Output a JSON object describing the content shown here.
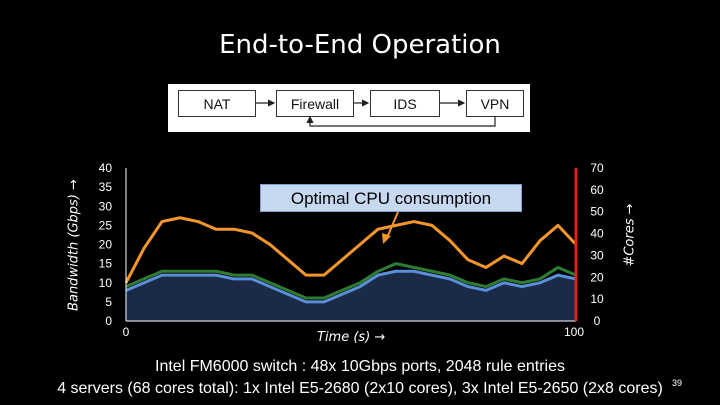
{
  "slide": {
    "title": "End-to-End Operation",
    "pipeline": [
      "NAT",
      "Firewall",
      "IDS",
      "VPN"
    ],
    "footnote_line1": "Intel FM6000 switch : 48x 10Gbps ports, 2048 rule entries",
    "footnote_line2": "4 servers  (68 cores total): 1x Intel E5-2680 (2x10 cores), 3x Intel E5-2650 (2x8 cores)",
    "page_number": "39"
  },
  "colors": {
    "background": "#000000",
    "orange": "#f5962a",
    "green": "#2e7d32",
    "blue": "#5b8fd9",
    "cores_axis": "#e02020",
    "callout": "#c6d9f1"
  },
  "chart_data": {
    "type": "line",
    "title": "",
    "callout": "Optimal CPU consumption",
    "xlabel": "Time (s) →",
    "ylabel_left": "Bandwidth (Gbps) →",
    "ylabel_right": "#Cores →",
    "x_ticks": [
      "0",
      "100"
    ],
    "xlim": [
      0,
      100
    ],
    "ylim_left": [
      0,
      40
    ],
    "ylim_right": [
      0,
      70
    ],
    "left_ticks": [
      "40",
      "35",
      "30",
      "25",
      "20",
      "15",
      "10",
      "5",
      "0"
    ],
    "right_ticks": [
      "70",
      "60",
      "50",
      "40",
      "30",
      "20",
      "10",
      "0"
    ],
    "x": [
      0,
      4,
      8,
      12,
      16,
      20,
      24,
      28,
      32,
      36,
      40,
      44,
      48,
      52,
      56,
      60,
      64,
      68,
      72,
      76,
      80,
      84,
      88,
      92,
      96,
      100
    ],
    "series": [
      {
        "axis": "left",
        "color": "orange",
        "values": [
          10,
          19,
          26,
          27,
          26,
          24,
          24,
          23,
          20,
          16,
          12,
          12,
          16,
          20,
          24,
          25,
          26,
          25,
          21,
          16,
          14,
          17,
          15,
          21,
          25,
          20
        ]
      },
      {
        "axis": "left",
        "color": "green",
        "values": [
          9,
          11,
          13,
          13,
          13,
          13,
          12,
          12,
          10,
          8,
          6,
          6,
          8,
          10,
          13,
          15,
          14,
          13,
          12,
          10,
          9,
          11,
          10,
          11,
          14,
          12
        ]
      },
      {
        "axis": "left",
        "color": "blue",
        "values": [
          8,
          10,
          12,
          12,
          12,
          12,
          11,
          11,
          9,
          7,
          5,
          5,
          7,
          9,
          12,
          13,
          13,
          12,
          11,
          9,
          8,
          10,
          9,
          10,
          12,
          11
        ]
      }
    ]
  }
}
